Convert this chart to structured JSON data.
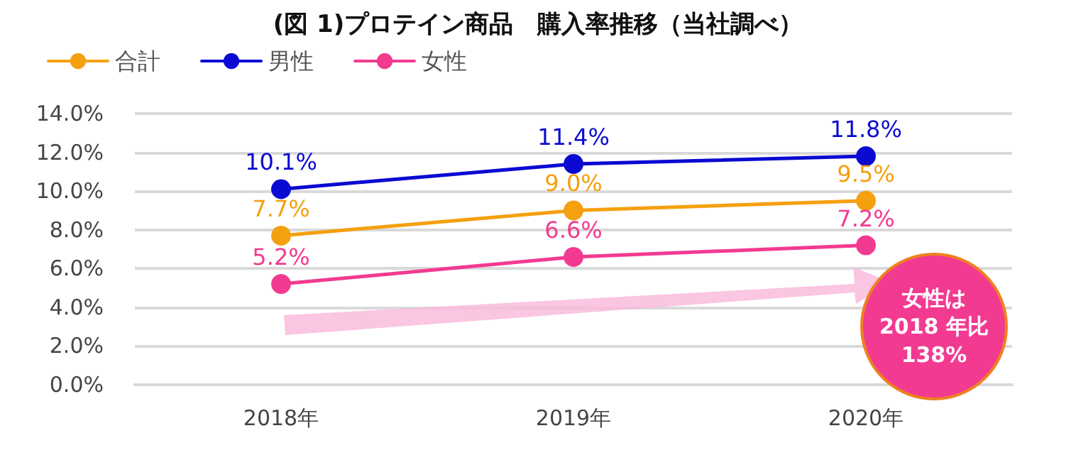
{
  "chart_data": {
    "type": "line",
    "title": "(図 1)プロテイン商品　購入率推移（当社調べ）",
    "categories": [
      "2018年",
      "2019年",
      "2020年"
    ],
    "series": [
      {
        "name": "合計",
        "color": "#f5a00f",
        "values": [
          7.7,
          9.0,
          9.5
        ],
        "value_labels": [
          "7.7%",
          "9.0%",
          "9.5%"
        ]
      },
      {
        "name": "男性",
        "color": "#0a0ad2",
        "values": [
          10.1,
          11.4,
          11.8
        ],
        "value_labels": [
          "10.1%",
          "11.4%",
          "11.8%"
        ]
      },
      {
        "name": "女性",
        "color": "#f23a91",
        "values": [
          5.2,
          6.6,
          7.2
        ],
        "value_labels": [
          "5.2%",
          "6.6%",
          "7.2%"
        ]
      }
    ],
    "ylim": [
      0,
      14
    ],
    "yticks": [
      {
        "value": 0,
        "label": "0.0%"
      },
      {
        "value": 2,
        "label": "2.0%"
      },
      {
        "value": 4,
        "label": "4.0%"
      },
      {
        "value": 6,
        "label": "6.0%"
      },
      {
        "value": 8,
        "label": "8.0%"
      },
      {
        "value": 10,
        "label": "10.0%"
      },
      {
        "value": 12,
        "label": "12.0%"
      },
      {
        "value": 14,
        "label": "14.0%"
      }
    ],
    "grid": "y",
    "legend": "top left",
    "marker": "circle",
    "line_style": "solid",
    "annotations": [
      "女性は\n2018 年比\n138%"
    ]
  }
}
